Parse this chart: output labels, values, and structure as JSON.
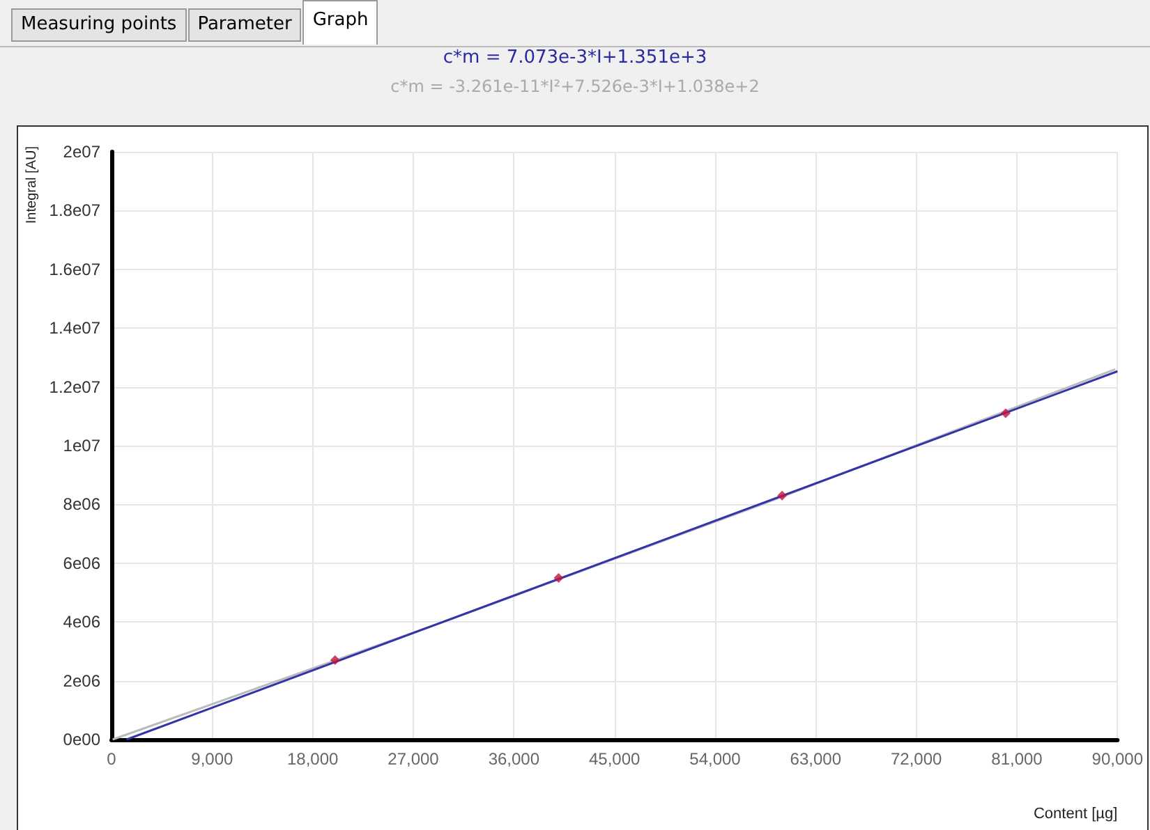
{
  "chart_data": {
    "type": "scatter",
    "title": "c*m = 7.073e-3*I+1.351e+3",
    "subtitle": "c*m = -3.261e-11*I²+7.526e-3*I+1.038e+2",
    "annotations": [
      "Measuring points",
      "Parameter",
      "Graph"
    ],
    "xlabel": "Content [µg]",
    "ylabel": "Integral [AU]",
    "xlim": [
      0,
      90000
    ],
    "xticks": [
      0,
      {
        "value": 9000,
        "label": "9,000"
      },
      {
        "value": 18000,
        "label": "18,000"
      },
      {
        "value": 27000,
        "label": "27,000"
      },
      {
        "value": 36000,
        "label": "36,000"
      },
      {
        "value": 45000,
        "label": "45,000"
      },
      {
        "value": 54000,
        "label": "54,000"
      },
      {
        "value": 63000,
        "label": "63,000"
      },
      {
        "value": 72000,
        "label": "72,000"
      },
      {
        "value": 81000,
        "label": "81,000"
      },
      {
        "value": 90000,
        "label": "90,000"
      }
    ],
    "ylim": [
      0,
      20000000
    ],
    "yticks": [
      {
        "value": 0,
        "label": "0e00"
      },
      {
        "value": 2000000,
        "label": "2e06"
      },
      {
        "value": 4000000,
        "label": "4e06"
      },
      {
        "value": 6000000,
        "label": "6e06"
      },
      {
        "value": 8000000,
        "label": "8e06"
      },
      {
        "value": 10000000,
        "label": "1e07"
      },
      {
        "value": 12000000,
        "label": "1.2e07"
      },
      {
        "value": 14000000,
        "label": "1.4e07"
      },
      {
        "value": 16000000,
        "label": "1.6e07"
      },
      {
        "value": 18000000,
        "label": "1.8e07"
      },
      {
        "value": 20000000,
        "label": "2e07"
      }
    ],
    "grid": true,
    "series": [
      {
        "type": "line",
        "color": "#bbbbbb",
        "marker": "none",
        "x": [
          104,
          29700,
          58200,
          89800
        ],
        "values": [
          0,
          4000000,
          8000000,
          12600000
        ]
      },
      {
        "type": "line",
        "color": "#3333aa",
        "marker": "none",
        "x": [
          1351,
          90000
        ],
        "values": [
          0,
          12530000
        ]
      },
      {
        "color": "#c0143c",
        "marker": "diamond",
        "x": [
          20000,
          40000,
          60000,
          80000
        ],
        "values": [
          2700000,
          5500000,
          8300000,
          11100000
        ]
      }
    ]
  }
}
